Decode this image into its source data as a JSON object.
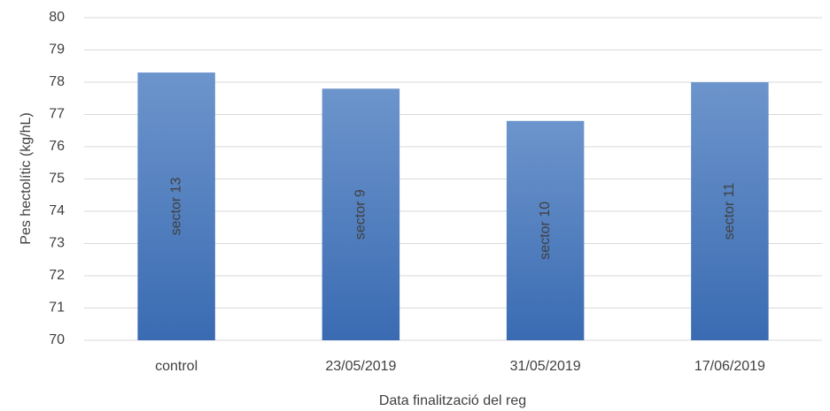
{
  "chart_data": {
    "type": "bar",
    "categories": [
      "control",
      "23/05/2019",
      "31/05/2019",
      "17/06/2019"
    ],
    "values": [
      78.3,
      77.8,
      76.8,
      78.0
    ],
    "bar_labels": [
      "sector 13",
      "sector 9",
      "sector 10",
      "sector 11"
    ],
    "color": "#4a7bbf",
    "xlabel": "Data finalització del reg",
    "ylabel": "Pes hectolític (kg/hL)",
    "ylim": [
      70,
      80
    ],
    "yticks": [
      70,
      71,
      72,
      73,
      74,
      75,
      76,
      77,
      78,
      79,
      80
    ],
    "grid": true
  }
}
